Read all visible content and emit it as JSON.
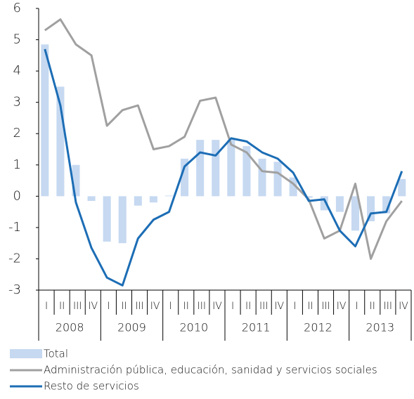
{
  "chart_data": {
    "type": "combo",
    "categories": [
      "I",
      "II",
      "III",
      "IV",
      "I",
      "II",
      "III",
      "IV",
      "I",
      "II",
      "III",
      "IV",
      "I",
      "II",
      "III",
      "IV",
      "I",
      "II",
      "III",
      "IV",
      "I",
      "II",
      "III",
      "IV"
    ],
    "years": [
      "2008",
      "2009",
      "2010",
      "2011",
      "2012",
      "2013"
    ],
    "ylim": [
      -3,
      6
    ],
    "yticks": [
      -3,
      -2,
      -1,
      0,
      1,
      2,
      3,
      4,
      5,
      6
    ],
    "grid": false,
    "series": [
      {
        "name": "Total",
        "type": "bar",
        "color": "#c6d9f1",
        "values": [
          4.85,
          3.5,
          1.0,
          -0.15,
          -1.45,
          -1.5,
          -0.3,
          -0.2,
          0.02,
          1.2,
          1.8,
          1.8,
          1.8,
          1.6,
          1.2,
          1.1,
          0.6,
          -0.05,
          -0.45,
          -0.5,
          -1.1,
          -0.8,
          -0.55,
          0.55
        ]
      },
      {
        "name": "Administración pública, educación, sanidad y servicios sociales",
        "type": "line",
        "color": "#a0a0a0",
        "values": [
          5.3,
          5.65,
          4.85,
          4.5,
          2.25,
          2.75,
          2.9,
          1.5,
          1.6,
          1.9,
          3.05,
          3.15,
          1.65,
          1.4,
          0.8,
          0.75,
          0.4,
          -0.1,
          -1.35,
          -1.1,
          0.4,
          -2.0,
          -0.8,
          -0.15
        ]
      },
      {
        "name": "Resto de servicios",
        "type": "line",
        "color": "#1c6db5",
        "values": [
          4.7,
          2.9,
          -0.2,
          -1.65,
          -2.6,
          -2.85,
          -1.35,
          -0.75,
          -0.5,
          0.95,
          1.4,
          1.3,
          1.85,
          1.75,
          1.4,
          1.2,
          0.75,
          -0.15,
          -0.1,
          -1.1,
          -1.6,
          -0.55,
          -0.5,
          0.8
        ]
      }
    ]
  }
}
